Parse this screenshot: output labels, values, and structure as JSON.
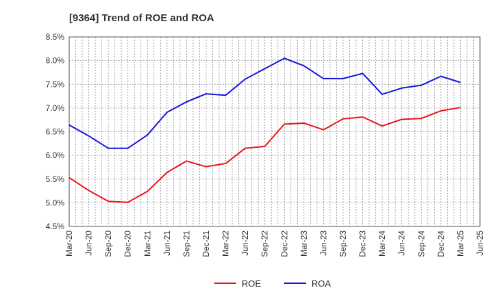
{
  "chart_data": {
    "type": "line",
    "title": "[9364]  Trend of ROE and ROA",
    "xlabel": "",
    "ylabel": "",
    "ylim": [
      4.5,
      8.5
    ],
    "y_ticks": [
      "4.5%",
      "5.0%",
      "5.5%",
      "6.0%",
      "6.5%",
      "7.0%",
      "7.5%",
      "8.0%",
      "8.5%"
    ],
    "x_ticks": [
      "Mar-20",
      "Jun-20",
      "Sep-20",
      "Dec-20",
      "Mar-21",
      "Jun-21",
      "Sep-21",
      "Dec-21",
      "Mar-22",
      "Jun-22",
      "Sep-22",
      "Dec-22",
      "Mar-23",
      "Jun-23",
      "Sep-23",
      "Dec-23",
      "Mar-24",
      "Jun-24",
      "Sep-24",
      "Dec-24",
      "Mar-25",
      "Jun-25"
    ],
    "grid": true,
    "legend_position": "bottom",
    "x": [
      "Mar-20",
      "Jun-20",
      "Sep-20",
      "Dec-20",
      "Mar-21",
      "Jun-21",
      "Sep-21",
      "Dec-21",
      "Mar-22",
      "Jun-22",
      "Sep-22",
      "Dec-22",
      "Mar-23",
      "Jun-23",
      "Sep-23",
      "Dec-23",
      "Mar-24",
      "Jun-24",
      "Sep-24",
      "Dec-24",
      "Mar-25"
    ],
    "series": [
      {
        "name": "ROE",
        "color": "#e8141b",
        "values": [
          5.53,
          5.26,
          5.03,
          5.01,
          5.24,
          5.64,
          5.88,
          5.76,
          5.83,
          6.15,
          6.19,
          6.66,
          6.68,
          6.54,
          6.77,
          6.81,
          6.62,
          6.76,
          6.78,
          6.94,
          7.01
        ]
      },
      {
        "name": "ROA",
        "color": "#1414e0",
        "values": [
          6.64,
          6.41,
          6.15,
          6.15,
          6.43,
          6.91,
          7.13,
          7.3,
          7.27,
          7.61,
          7.83,
          8.05,
          7.89,
          7.62,
          7.62,
          7.73,
          7.29,
          7.42,
          7.48,
          7.67,
          7.54
        ]
      }
    ]
  }
}
